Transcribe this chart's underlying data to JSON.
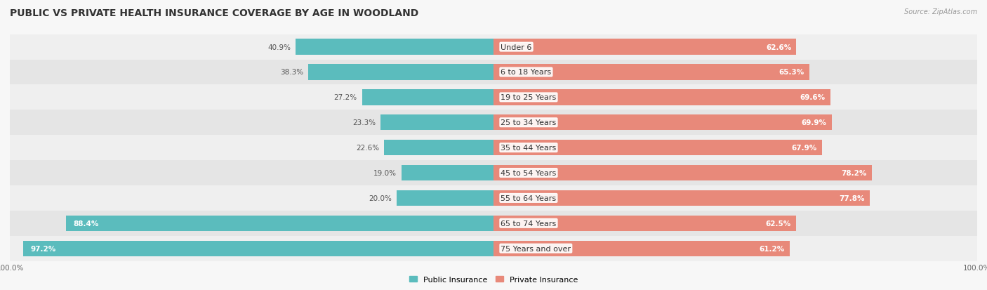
{
  "title": "PUBLIC VS PRIVATE HEALTH INSURANCE COVERAGE BY AGE IN WOODLAND",
  "source": "Source: ZipAtlas.com",
  "categories": [
    "Under 6",
    "6 to 18 Years",
    "19 to 25 Years",
    "25 to 34 Years",
    "35 to 44 Years",
    "45 to 54 Years",
    "55 to 64 Years",
    "65 to 74 Years",
    "75 Years and over"
  ],
  "public_values": [
    40.9,
    38.3,
    27.2,
    23.3,
    22.6,
    19.0,
    20.0,
    88.4,
    97.2
  ],
  "private_values": [
    62.6,
    65.3,
    69.6,
    69.9,
    67.9,
    78.2,
    77.8,
    62.5,
    61.2
  ],
  "public_color": "#5bbcbd",
  "private_color": "#e8897a",
  "title_fontsize": 10,
  "label_fontsize": 8,
  "value_fontsize": 7.5,
  "tick_fontsize": 7.5,
  "bar_height": 0.62,
  "max_value": 100.0,
  "left_xlim": -100,
  "right_xlim": 100,
  "row_colors": [
    "#efefef",
    "#e5e5e5"
  ],
  "bg_color": "#f7f7f7"
}
